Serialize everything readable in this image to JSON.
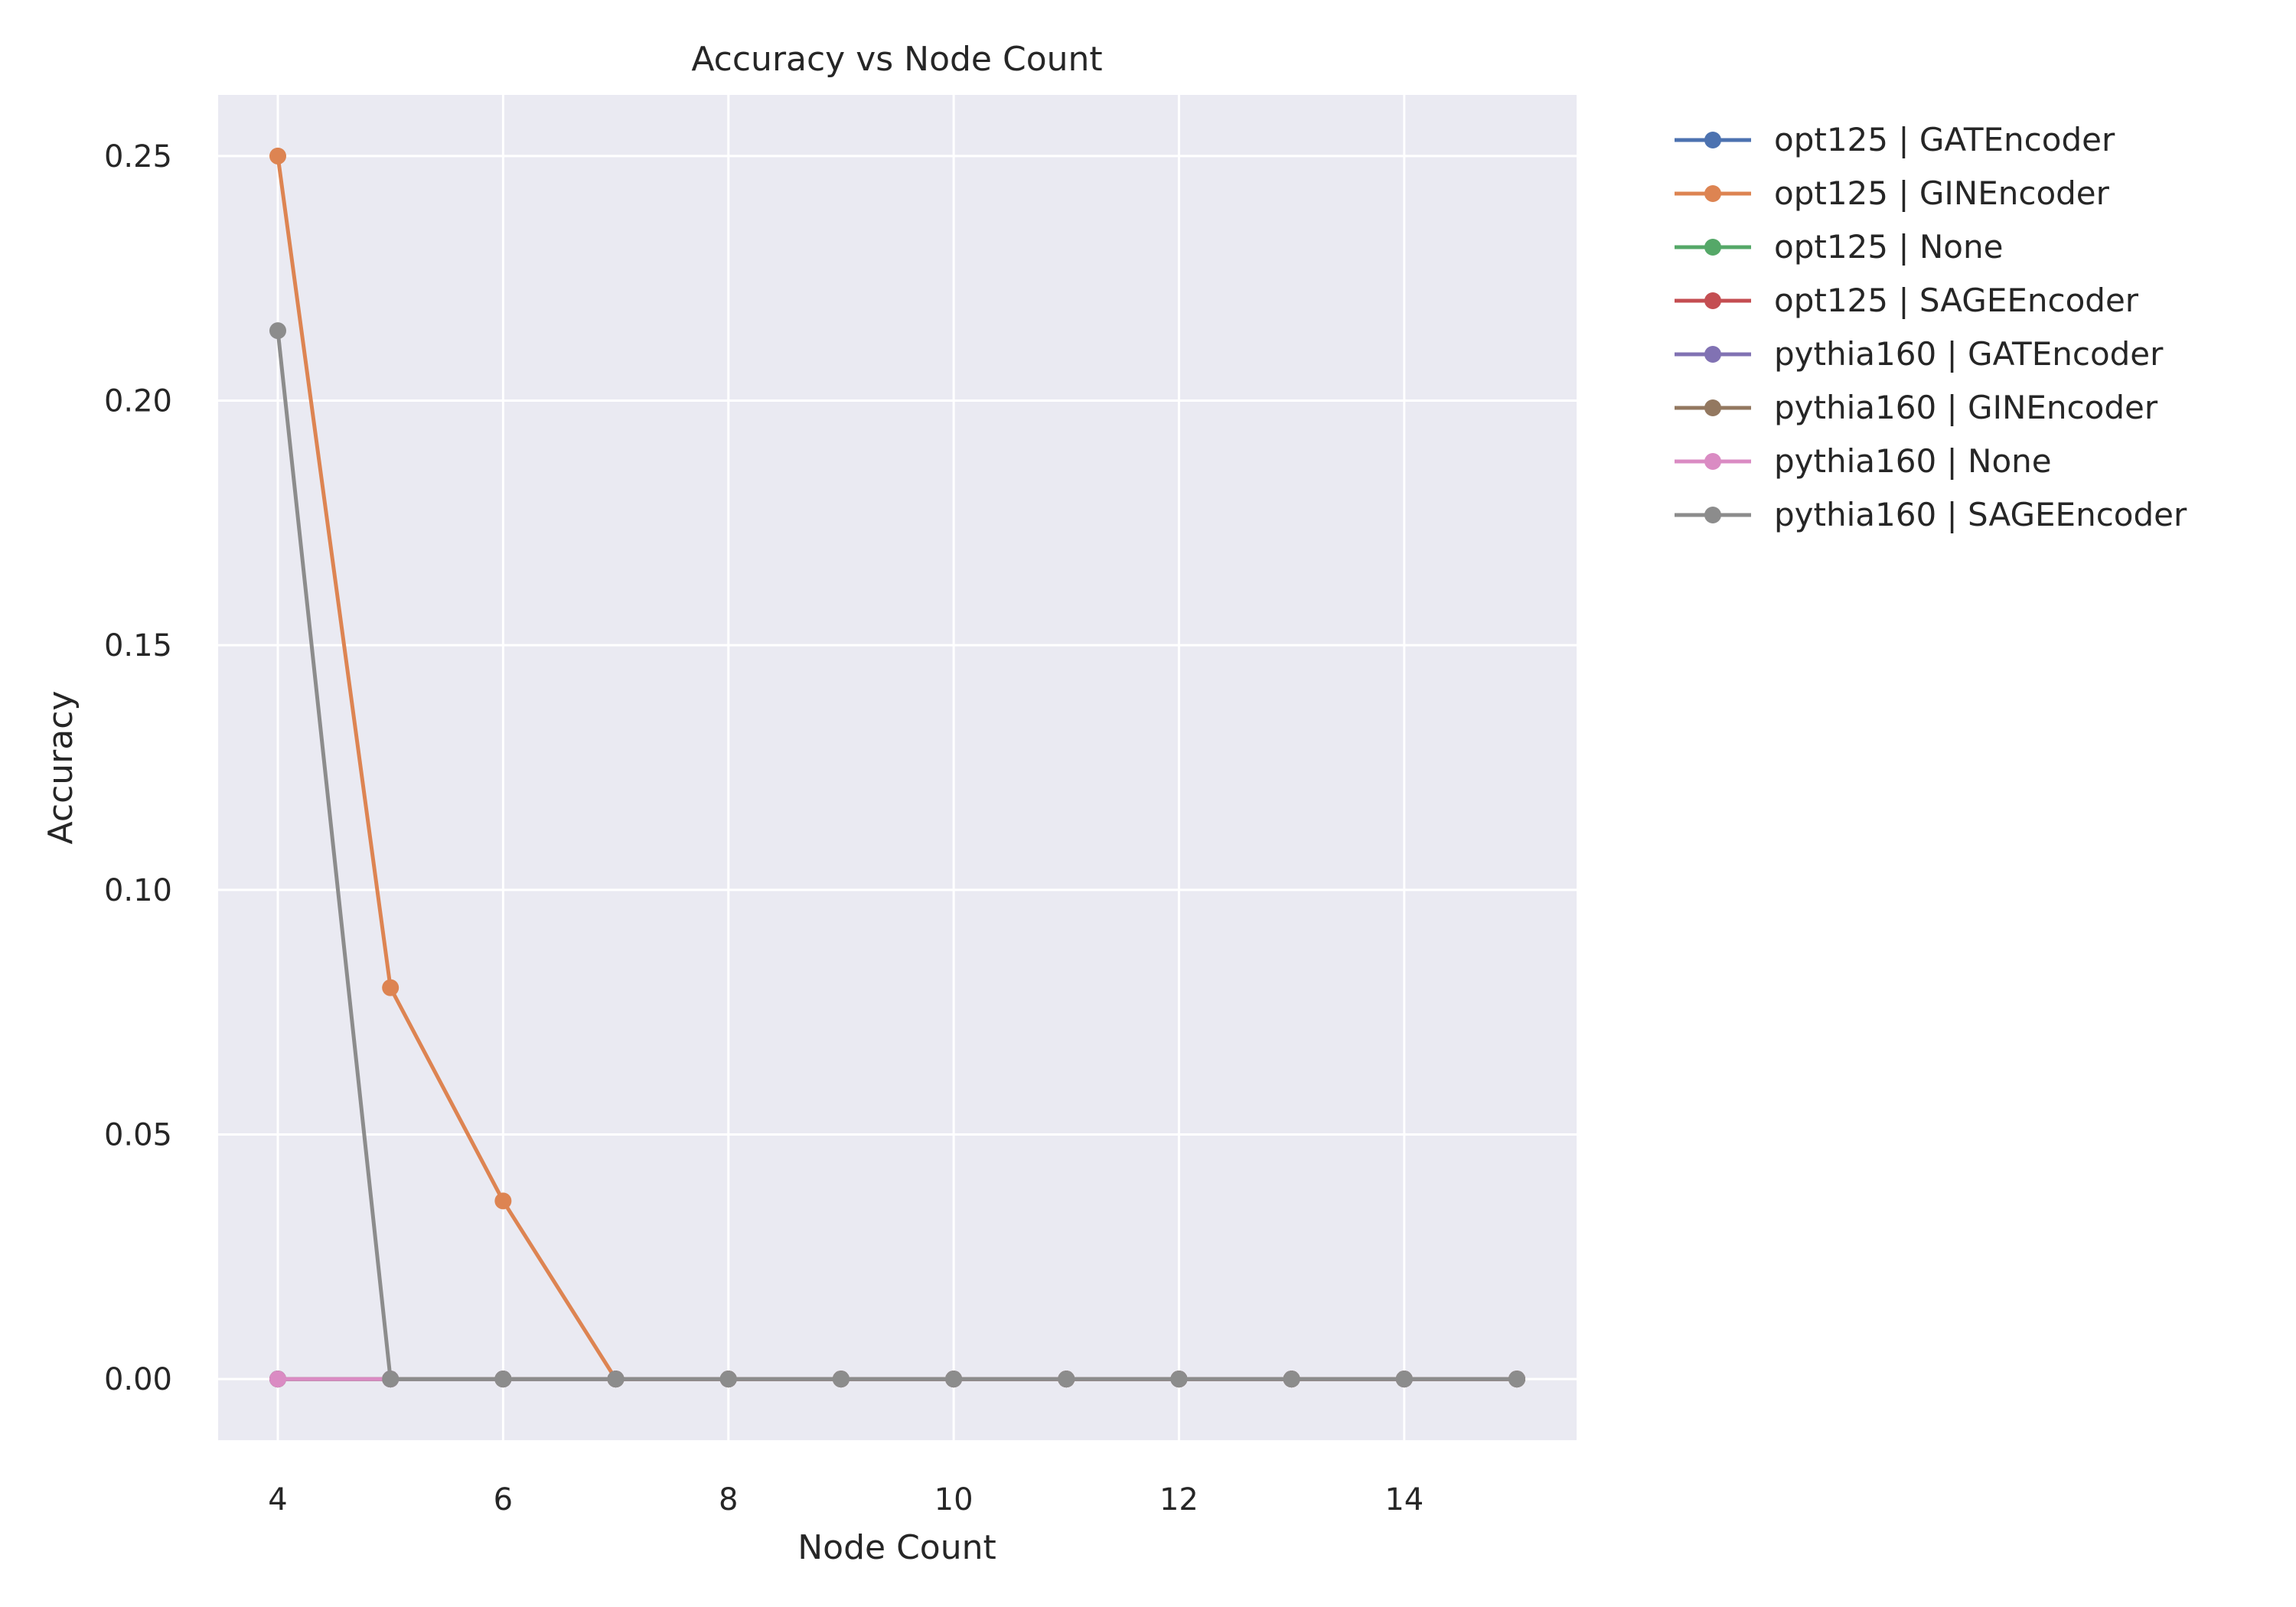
{
  "chart_data": {
    "type": "line",
    "title": "Accuracy vs Node Count",
    "xlabel": "Node Count",
    "ylabel": "Accuracy",
    "xlim": [
      3.47,
      15.53
    ],
    "ylim": [
      -0.0125,
      0.2625
    ],
    "xticks": [
      4,
      6,
      8,
      10,
      12,
      14
    ],
    "xtick_labels": [
      "4",
      "6",
      "8",
      "10",
      "12",
      "14"
    ],
    "yticks": [
      0,
      0.05,
      0.1,
      0.15,
      0.2,
      0.25
    ],
    "ytick_labels": [
      "0.00",
      "0.05",
      "0.10",
      "0.15",
      "0.20",
      "0.25"
    ],
    "grid": true,
    "legend_position": "outside-right",
    "x": [
      4,
      5,
      6,
      7,
      8,
      9,
      10,
      11,
      12,
      13,
      14,
      15
    ],
    "series": [
      {
        "name": "opt125 | GATEncoder",
        "color": "#4c72b0",
        "values": [
          0,
          0,
          0,
          0,
          0,
          0,
          0,
          0,
          0,
          0,
          0,
          0
        ]
      },
      {
        "name": "opt125 | GINEncoder",
        "color": "#dd8452",
        "values": [
          0.25,
          0.08,
          0.0364,
          0,
          0,
          0,
          0,
          0,
          0,
          0,
          0,
          0
        ]
      },
      {
        "name": "opt125 | None",
        "color": "#55a868",
        "values": [
          0,
          0,
          0,
          0,
          0,
          0,
          0,
          0,
          0,
          0,
          0,
          0
        ]
      },
      {
        "name": "opt125 | SAGEEncoder",
        "color": "#c44e52",
        "values": [
          0,
          0,
          0,
          0,
          0,
          0,
          0,
          0,
          0,
          0,
          0,
          0
        ]
      },
      {
        "name": "pythia160 | GATEncoder",
        "color": "#8172b3",
        "values": [
          0,
          0,
          0,
          0,
          0,
          0,
          0,
          0,
          0,
          0,
          0,
          0
        ]
      },
      {
        "name": "pythia160 | GINEncoder",
        "color": "#937860",
        "values": [
          0,
          0,
          0,
          0,
          0,
          0,
          0,
          0,
          0,
          0,
          0,
          0
        ]
      },
      {
        "name": "pythia160 | None",
        "color": "#da8bc3",
        "values": [
          0,
          0,
          null,
          null,
          null,
          null,
          null,
          null,
          null,
          null,
          null,
          null
        ]
      },
      {
        "name": "pythia160 | SAGEEncoder",
        "color": "#8c8c8c",
        "values": [
          0.2143,
          0,
          0,
          0,
          0,
          0,
          0,
          0,
          0,
          0,
          0,
          0
        ]
      }
    ]
  }
}
